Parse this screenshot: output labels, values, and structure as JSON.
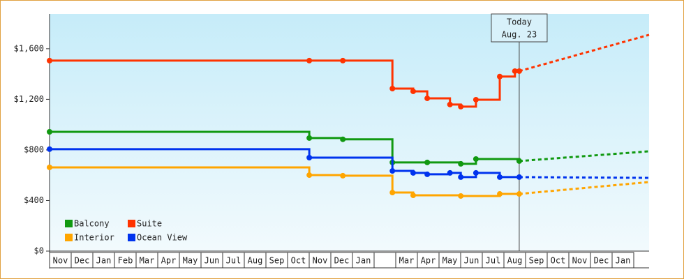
{
  "chart_data": {
    "type": "step-line",
    "ylim": [
      0,
      1875
    ],
    "yticks": [
      {
        "value": 0,
        "label": "$0"
      },
      {
        "value": 400,
        "label": "$400"
      },
      {
        "value": 800,
        "label": "$800"
      },
      {
        "value": 1200,
        "label": "$1,200"
      },
      {
        "value": 1600,
        "label": "$1,600"
      }
    ],
    "xlim": [
      0,
      27.7
    ],
    "months": [
      "Nov",
      "Dec",
      "Jan",
      "Feb",
      "Mar",
      "Apr",
      "May",
      "Jun",
      "Jul",
      "Aug",
      "Sep",
      "Oct",
      "Nov",
      "Dec",
      "Jan",
      null,
      "Mar",
      "Apr",
      "May",
      "Jun",
      "Jul",
      "Aug",
      "Sep",
      "Oct",
      "Nov",
      "Dec",
      "Jan"
    ],
    "today": {
      "x": 21.7,
      "label": [
        "Today",
        "Aug. 23"
      ]
    },
    "series": [
      {
        "name": "Balcony",
        "color": "#119911",
        "x": [
          0,
          12,
          13.55,
          15.84,
          17.45,
          19,
          19.7,
          21.7
        ],
        "values": [
          943,
          894,
          884,
          701,
          701,
          690,
          728,
          712
        ],
        "forecast_x": [
          21.7,
          27.7
        ],
        "forecast_values": [
          712,
          789
        ]
      },
      {
        "name": "Suite",
        "color": "#ff3300",
        "x": [
          0,
          12,
          13.55,
          15.84,
          16.8,
          17.45,
          18.5,
          19,
          19.7,
          20.8,
          21.5,
          21.7
        ],
        "values": [
          1506,
          1506,
          1506,
          1285,
          1263,
          1208,
          1159,
          1142,
          1197,
          1380,
          1423,
          1423
        ],
        "forecast_x": [
          21.7,
          27.7
        ],
        "forecast_values": [
          1423,
          1710
        ]
      },
      {
        "name": "Interior",
        "color": "#ffa500",
        "x": [
          0,
          12,
          13.55,
          15.84,
          16.8,
          19,
          20.8,
          21.7
        ],
        "values": [
          662,
          601,
          596,
          463,
          441,
          436,
          452,
          452
        ],
        "forecast_x": [
          21.7,
          27.7
        ],
        "forecast_values": [
          452,
          546
        ]
      },
      {
        "name": "Ocean View",
        "color": "#0033ee",
        "x": [
          0,
          12,
          15.84,
          16.8,
          17.45,
          18.5,
          19,
          19.7,
          20.8,
          21.7
        ],
        "values": [
          806,
          739,
          634,
          618,
          607,
          618,
          585,
          618,
          585,
          585
        ],
        "forecast_x": [
          21.7,
          27.7
        ],
        "forecast_values": [
          585,
          579
        ]
      }
    ]
  }
}
